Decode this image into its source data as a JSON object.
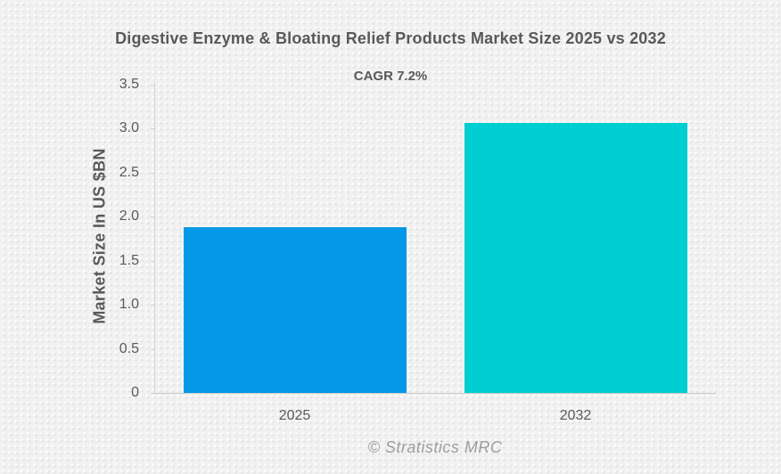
{
  "chart_data": {
    "type": "bar",
    "title": "Digestive Enzyme & Bloating Relief Products Market Size 2025 vs 2032",
    "subtitle": "CAGR 7.2%",
    "categories": [
      "2025",
      "2032"
    ],
    "values": [
      1.88,
      3.06
    ],
    "bar_colors": [
      "#0499e6",
      "#00ced1"
    ],
    "xlabel": "",
    "ylabel": "Market Size In US $BN",
    "ylim": [
      0,
      3.5
    ],
    "yticks": [
      0,
      0.5,
      1.0,
      1.5,
      2.0,
      2.5,
      3.0,
      3.5
    ],
    "ytick_labels": [
      "0",
      "0.5",
      "1.0",
      "1.5",
      "2.0",
      "2.5",
      "3.0",
      "3.5"
    ],
    "grid": false,
    "legend": null,
    "footer": "© Stratistics MRC"
  },
  "colors": {
    "bar_2025": "#0499e6",
    "bar_2032": "#00ced1",
    "text": "#595959",
    "footer_text": "#9d9da0",
    "axis_line": "#c9c9cb",
    "background": "#f1f1f2"
  }
}
